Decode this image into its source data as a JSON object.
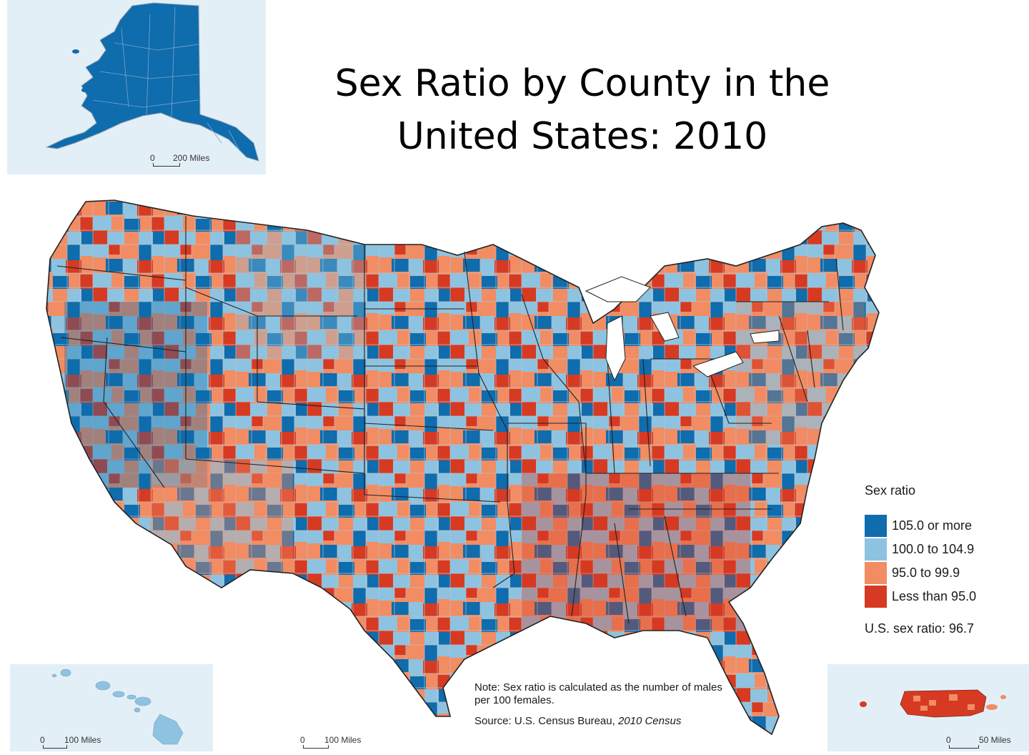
{
  "title": {
    "line1": "Sex Ratio by County in the",
    "line2": "United States: 2010"
  },
  "legend": {
    "title": "Sex ratio",
    "items": [
      {
        "label": "105.0 or more",
        "color": "#0f6cad"
      },
      {
        "label": "100.0 to 104.9",
        "color": "#8dc3e0"
      },
      {
        "label": "95.0 to 99.9",
        "color": "#f28c63"
      },
      {
        "label": "Less than 95.0",
        "color": "#d63a22"
      }
    ],
    "us_ratio": "U.S. sex ratio: 96.7"
  },
  "note": "Note: Sex ratio is calculated as the number of males per 100 females.",
  "source": {
    "prefix": "Source: U.S. Census Bureau, ",
    "italic": "2010 Census"
  },
  "scales": {
    "alaska": {
      "zero": "0",
      "label": "200 Miles"
    },
    "hawaii": {
      "zero": "0",
      "label": "100 Miles"
    },
    "main": {
      "zero": "0",
      "label": "100 Miles"
    },
    "puerto_rico": {
      "zero": "0",
      "label": "50 Miles"
    }
  },
  "colors": {
    "inset_bg": "#e3eff7",
    "border": "#222222",
    "county_line": "#9aa6b2"
  }
}
